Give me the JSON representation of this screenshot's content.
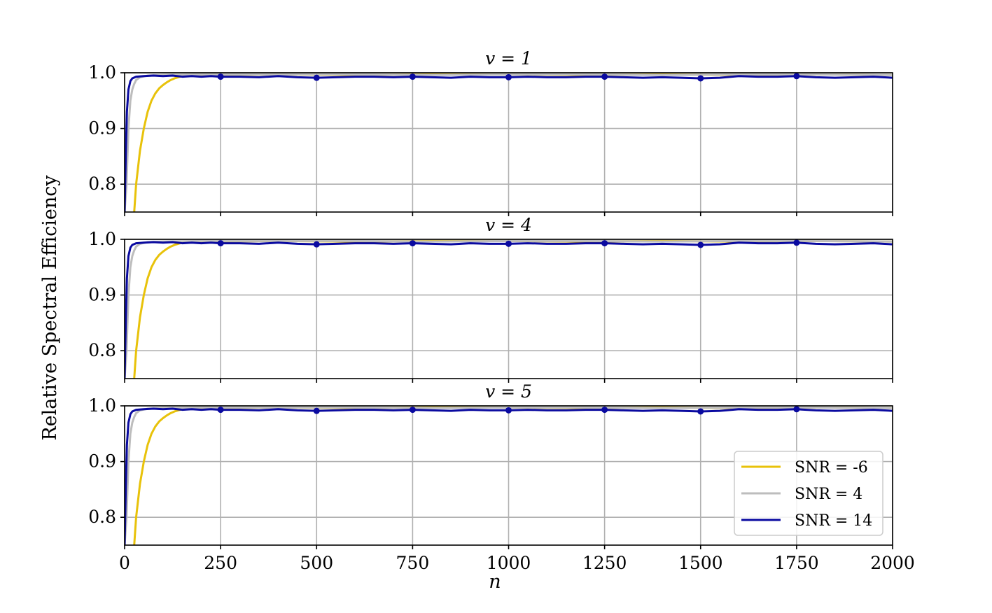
{
  "chart_data": {
    "type": "line",
    "ylabel": "Relative Spectral Efficiency",
    "xlabel": "n",
    "xlim": [
      0,
      2000
    ],
    "ylim": [
      0.75,
      1.0
    ],
    "xticks": [
      "0",
      "250",
      "500",
      "750",
      "1000",
      "1250",
      "1500",
      "1750",
      "2000"
    ],
    "yticks": [
      "0.8",
      "0.9",
      "1.0"
    ],
    "grid": true,
    "legend_position": "lower-right",
    "series_styles": [
      {
        "name": "SNR = -6",
        "color": "#e8c20a"
      },
      {
        "name": "SNR = 4",
        "color": "#bdbdbd"
      },
      {
        "name": "SNR = 14",
        "color": "#0a0aa0"
      }
    ],
    "panels": [
      {
        "title": "v = 1",
        "series": [
          {
            "name": "SNR = -6",
            "x": [
              25,
              30,
              40,
              50,
              60,
              70,
              80,
              90,
              100,
              110,
              120,
              130,
              140,
              150,
              200,
              400,
              600,
              800,
              1000,
              1200,
              1400,
              1600,
              1800,
              2000
            ],
            "y": [
              0.75,
              0.8,
              0.86,
              0.9,
              0.93,
              0.95,
              0.963,
              0.972,
              0.978,
              0.983,
              0.987,
              0.99,
              0.992,
              0.994,
              0.996,
              0.997,
              0.996,
              0.997,
              0.997,
              0.996,
              0.997,
              0.996,
              0.997,
              0.996
            ]
          },
          {
            "name": "SNR = 4",
            "x": [
              0,
              5,
              10,
              15,
              20,
              25,
              30,
              40,
              60,
              100,
              200,
              400,
              600,
              800,
              1000,
              1200,
              1400,
              1600,
              1800,
              2000
            ],
            "y": [
              0.75,
              0.8,
              0.9,
              0.95,
              0.97,
              0.98,
              0.987,
              0.992,
              0.995,
              0.996,
              0.997,
              0.997,
              0.997,
              0.996,
              0.997,
              0.997,
              0.996,
              0.997,
              0.997,
              0.996
            ]
          },
          {
            "name": "SNR = 14",
            "x": [
              0,
              3,
              6,
              10,
              15,
              20,
              30,
              50,
              75,
              100,
              125,
              150,
              175,
              200,
              225,
              250,
              300,
              350,
              400,
              450,
              500,
              550,
              600,
              650,
              700,
              750,
              800,
              850,
              900,
              950,
              1000,
              1050,
              1100,
              1150,
              1200,
              1250,
              1300,
              1350,
              1400,
              1450,
              1500,
              1550,
              1600,
              1650,
              1700,
              1750,
              1800,
              1850,
              1900,
              1950,
              2000
            ],
            "y": [
              0.75,
              0.85,
              0.93,
              0.97,
              0.985,
              0.99,
              0.993,
              0.994,
              0.995,
              0.994,
              0.995,
              0.993,
              0.994,
              0.993,
              0.994,
              0.993,
              0.993,
              0.992,
              0.994,
              0.992,
              0.991,
              0.992,
              0.993,
              0.993,
              0.992,
              0.993,
              0.992,
              0.991,
              0.993,
              0.992,
              0.992,
              0.993,
              0.992,
              0.992,
              0.993,
              0.993,
              0.992,
              0.991,
              0.992,
              0.991,
              0.99,
              0.991,
              0.994,
              0.993,
              0.993,
              0.994,
              0.992,
              0.991,
              0.992,
              0.993,
              0.991
            ]
          },
          {
            "name": "SNR = 14 markers",
            "x": [
              250,
              500,
              750,
              1000,
              1250,
              1500,
              1750
            ],
            "y": [
              0.993,
              0.991,
              0.993,
              0.992,
              0.993,
              0.99,
              0.994
            ]
          }
        ]
      },
      {
        "title": "v = 4",
        "series": [
          {
            "name": "SNR = -6",
            "x": [
              25,
              30,
              40,
              50,
              60,
              70,
              80,
              90,
              100,
              110,
              120,
              130,
              140,
              150,
              200,
              400,
              600,
              800,
              1000,
              1200,
              1400,
              1600,
              1800,
              2000
            ],
            "y": [
              0.75,
              0.8,
              0.86,
              0.9,
              0.93,
              0.95,
              0.963,
              0.972,
              0.978,
              0.983,
              0.987,
              0.99,
              0.992,
              0.994,
              0.996,
              0.997,
              0.996,
              0.997,
              0.997,
              0.996,
              0.997,
              0.996,
              0.997,
              0.996
            ]
          },
          {
            "name": "SNR = 4",
            "x": [
              0,
              5,
              10,
              15,
              20,
              25,
              30,
              40,
              60,
              100,
              200,
              400,
              600,
              800,
              1000,
              1200,
              1400,
              1600,
              1800,
              2000
            ],
            "y": [
              0.75,
              0.8,
              0.9,
              0.95,
              0.97,
              0.98,
              0.987,
              0.992,
              0.995,
              0.996,
              0.997,
              0.997,
              0.997,
              0.996,
              0.997,
              0.997,
              0.996,
              0.997,
              0.997,
              0.996
            ]
          },
          {
            "name": "SNR = 14",
            "x": [
              0,
              3,
              6,
              10,
              15,
              20,
              30,
              50,
              75,
              100,
              125,
              150,
              175,
              200,
              225,
              250,
              300,
              350,
              400,
              450,
              500,
              550,
              600,
              650,
              700,
              750,
              800,
              850,
              900,
              950,
              1000,
              1050,
              1100,
              1150,
              1200,
              1250,
              1300,
              1350,
              1400,
              1450,
              1500,
              1550,
              1600,
              1650,
              1700,
              1750,
              1800,
              1850,
              1900,
              1950,
              2000
            ],
            "y": [
              0.75,
              0.85,
              0.93,
              0.97,
              0.985,
              0.99,
              0.993,
              0.994,
              0.995,
              0.994,
              0.995,
              0.993,
              0.994,
              0.993,
              0.994,
              0.993,
              0.993,
              0.992,
              0.994,
              0.992,
              0.991,
              0.992,
              0.993,
              0.993,
              0.992,
              0.993,
              0.992,
              0.991,
              0.993,
              0.992,
              0.992,
              0.993,
              0.992,
              0.992,
              0.993,
              0.993,
              0.992,
              0.991,
              0.992,
              0.991,
              0.99,
              0.991,
              0.994,
              0.993,
              0.993,
              0.994,
              0.992,
              0.991,
              0.992,
              0.993,
              0.991
            ]
          },
          {
            "name": "SNR = 14 markers",
            "x": [
              250,
              500,
              750,
              1000,
              1250,
              1500,
              1750
            ],
            "y": [
              0.993,
              0.991,
              0.993,
              0.992,
              0.993,
              0.99,
              0.994
            ]
          }
        ]
      },
      {
        "title": "v = 5",
        "series": [
          {
            "name": "SNR = -6",
            "x": [
              25,
              30,
              40,
              50,
              60,
              70,
              80,
              90,
              100,
              110,
              120,
              130,
              140,
              150,
              200,
              400,
              600,
              800,
              1000,
              1200,
              1400,
              1600,
              1800,
              2000
            ],
            "y": [
              0.75,
              0.8,
              0.86,
              0.9,
              0.93,
              0.95,
              0.963,
              0.972,
              0.978,
              0.983,
              0.987,
              0.99,
              0.992,
              0.994,
              0.996,
              0.997,
              0.996,
              0.997,
              0.997,
              0.996,
              0.997,
              0.996,
              0.997,
              0.996
            ]
          },
          {
            "name": "SNR = 4",
            "x": [
              0,
              5,
              10,
              15,
              20,
              25,
              30,
              40,
              60,
              100,
              200,
              400,
              600,
              800,
              1000,
              1200,
              1400,
              1600,
              1800,
              2000
            ],
            "y": [
              0.75,
              0.8,
              0.9,
              0.95,
              0.97,
              0.98,
              0.987,
              0.992,
              0.995,
              0.996,
              0.997,
              0.997,
              0.997,
              0.996,
              0.997,
              0.997,
              0.996,
              0.997,
              0.997,
              0.996
            ]
          },
          {
            "name": "SNR = 14",
            "x": [
              0,
              3,
              6,
              10,
              15,
              20,
              30,
              50,
              75,
              100,
              125,
              150,
              175,
              200,
              225,
              250,
              300,
              350,
              400,
              450,
              500,
              550,
              600,
              650,
              700,
              750,
              800,
              850,
              900,
              950,
              1000,
              1050,
              1100,
              1150,
              1200,
              1250,
              1300,
              1350,
              1400,
              1450,
              1500,
              1550,
              1600,
              1650,
              1700,
              1750,
              1800,
              1850,
              1900,
              1950,
              2000
            ],
            "y": [
              0.75,
              0.85,
              0.93,
              0.97,
              0.985,
              0.99,
              0.993,
              0.994,
              0.995,
              0.994,
              0.995,
              0.993,
              0.994,
              0.993,
              0.994,
              0.993,
              0.993,
              0.992,
              0.994,
              0.992,
              0.991,
              0.992,
              0.993,
              0.993,
              0.992,
              0.993,
              0.992,
              0.991,
              0.993,
              0.992,
              0.992,
              0.993,
              0.992,
              0.992,
              0.993,
              0.993,
              0.992,
              0.991,
              0.992,
              0.991,
              0.99,
              0.991,
              0.994,
              0.993,
              0.993,
              0.994,
              0.992,
              0.991,
              0.992,
              0.993,
              0.991
            ]
          },
          {
            "name": "SNR = 14 markers",
            "x": [
              250,
              500,
              750,
              1000,
              1250,
              1500,
              1750
            ],
            "y": [
              0.993,
              0.991,
              0.993,
              0.992,
              0.993,
              0.99,
              0.994
            ]
          }
        ]
      }
    ]
  }
}
